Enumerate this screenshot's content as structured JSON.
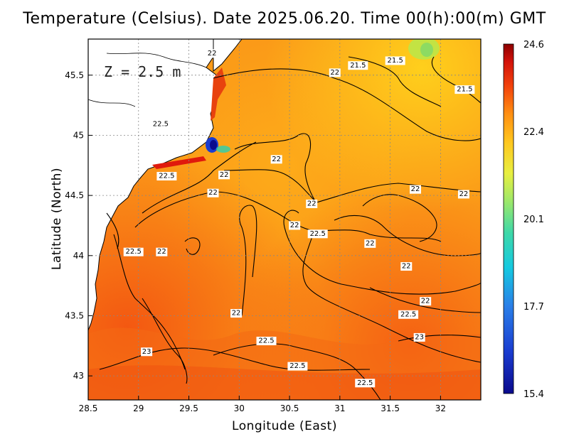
{
  "title": "Temperature (Celsius). Date 2025.06.20. Time 00(h):00(m) GMT",
  "depth_label": "Z = 2.5 m",
  "x_axis": {
    "label": "Longitude (East)",
    "range": [
      28.5,
      32.4
    ],
    "ticks": [
      28.5,
      29,
      29.5,
      30,
      30.5,
      31,
      31.5,
      32
    ]
  },
  "y_axis": {
    "label": "Latitude (North)",
    "range": [
      42.8,
      45.8
    ],
    "ticks": [
      43,
      43.5,
      44,
      44.5,
      45,
      45.5
    ]
  },
  "colorbar": {
    "ticks": [
      "24.6",
      "22.4",
      "20.1",
      "17.7",
      "15.4"
    ],
    "min": 15.4,
    "max": 24.6
  },
  "contour_labels": [
    {
      "text": "22",
      "lon": 29.73,
      "lat": 45.68
    },
    {
      "text": "21.5",
      "lon": 31.18,
      "lat": 45.58
    },
    {
      "text": "21.5",
      "lon": 31.55,
      "lat": 45.62
    },
    {
      "text": "22",
      "lon": 30.95,
      "lat": 45.52
    },
    {
      "text": "21.5",
      "lon": 32.24,
      "lat": 45.38
    },
    {
      "text": "22.5",
      "lon": 29.22,
      "lat": 45.09
    },
    {
      "text": "22",
      "lon": 30.37,
      "lat": 44.8
    },
    {
      "text": "22",
      "lon": 29.85,
      "lat": 44.67
    },
    {
      "text": "22.5",
      "lon": 29.28,
      "lat": 44.66
    },
    {
      "text": "22",
      "lon": 31.75,
      "lat": 44.55
    },
    {
      "text": "22",
      "lon": 32.23,
      "lat": 44.51
    },
    {
      "text": "22",
      "lon": 29.74,
      "lat": 44.52
    },
    {
      "text": "22",
      "lon": 30.72,
      "lat": 44.43
    },
    {
      "text": "22",
      "lon": 30.55,
      "lat": 44.25
    },
    {
      "text": "22.5",
      "lon": 30.78,
      "lat": 44.18
    },
    {
      "text": "22",
      "lon": 31.3,
      "lat": 44.1
    },
    {
      "text": "22.5",
      "lon": 28.95,
      "lat": 44.03
    },
    {
      "text": "22",
      "lon": 29.23,
      "lat": 44.03
    },
    {
      "text": "22",
      "lon": 31.66,
      "lat": 43.91
    },
    {
      "text": "22",
      "lon": 31.85,
      "lat": 43.62
    },
    {
      "text": "22.5",
      "lon": 31.68,
      "lat": 43.51
    },
    {
      "text": "22",
      "lon": 29.97,
      "lat": 43.52
    },
    {
      "text": "23",
      "lon": 31.79,
      "lat": 43.32
    },
    {
      "text": "22.5",
      "lon": 30.27,
      "lat": 43.29
    },
    {
      "text": "23",
      "lon": 29.08,
      "lat": 43.2
    },
    {
      "text": "22.5",
      "lon": 30.58,
      "lat": 43.08
    },
    {
      "text": "22.5",
      "lon": 31.25,
      "lat": 42.94
    }
  ]
}
